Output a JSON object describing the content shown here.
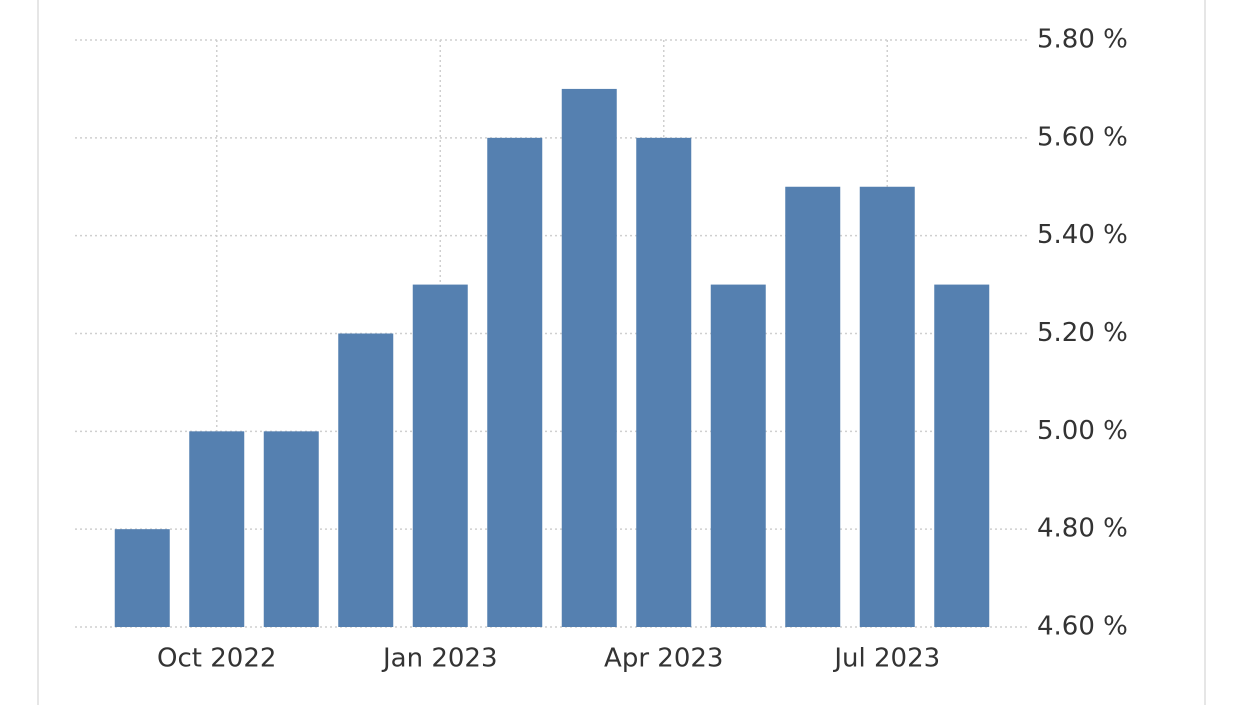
{
  "chart_data": {
    "type": "bar",
    "categories": [
      null,
      "Oct 2022",
      null,
      null,
      "Jan 2023",
      null,
      null,
      "Apr 2023",
      null,
      null,
      "Jul 2023",
      null
    ],
    "values": [
      4.8,
      5.0,
      5.0,
      5.2,
      5.3,
      5.6,
      5.7,
      5.6,
      5.3,
      5.5,
      5.5,
      5.3
    ],
    "color": "#5580b0",
    "ylim": [
      4.6,
      5.8
    ],
    "yticks": [
      {
        "value": 4.6,
        "label": "4.60 %"
      },
      {
        "value": 4.8,
        "label": "4.80 %"
      },
      {
        "value": 5.0,
        "label": "5.00 %"
      },
      {
        "value": 5.2,
        "label": "5.20 %"
      },
      {
        "value": 5.4,
        "label": "5.40 %"
      },
      {
        "value": 5.6,
        "label": "5.60 %"
      },
      {
        "value": 5.8,
        "label": "5.80 %"
      }
    ],
    "grid": true
  }
}
